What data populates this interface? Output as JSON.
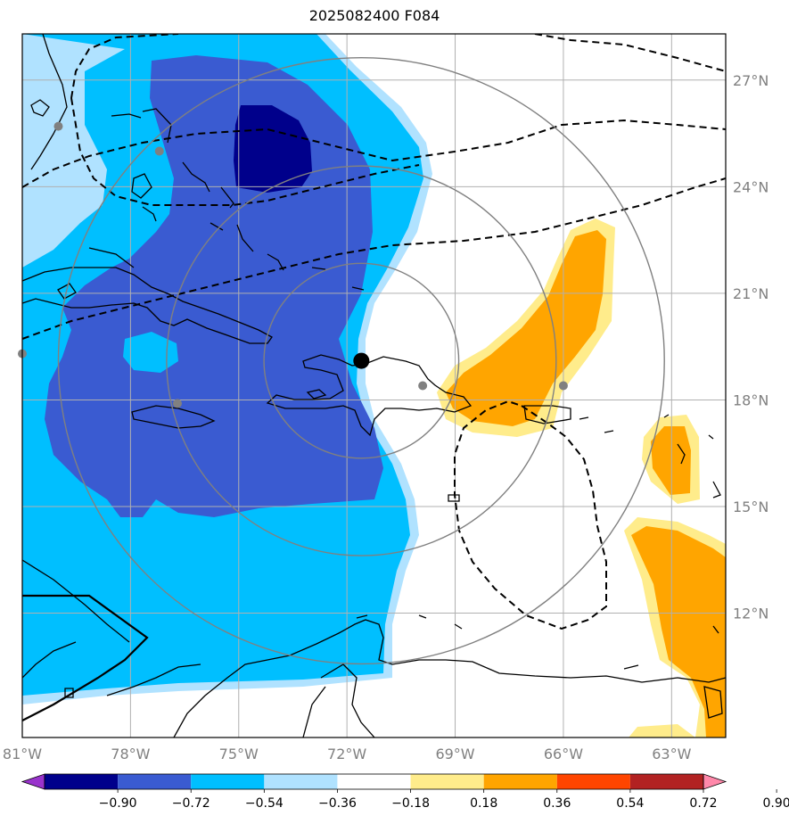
{
  "title": "2025082400 F084",
  "map": {
    "lon_range": [
      -81.0,
      -61.5
    ],
    "lat_range": [
      8.5,
      28.3
    ],
    "lon_ticks": [
      {
        "value": -81,
        "label": "81°W"
      },
      {
        "value": -78,
        "label": "78°W"
      },
      {
        "value": -75,
        "label": "75°W"
      },
      {
        "value": -72,
        "label": "72°W"
      },
      {
        "value": -69,
        "label": "69°W"
      },
      {
        "value": -66,
        "label": "66°W"
      },
      {
        "value": -63,
        "label": "63°W"
      }
    ],
    "lat_ticks": [
      {
        "value": 27,
        "label": "27°N"
      },
      {
        "value": 24,
        "label": "24°N"
      },
      {
        "value": 21,
        "label": "21°N"
      },
      {
        "value": 18,
        "label": "18°N"
      },
      {
        "value": 15,
        "label": "15°N"
      },
      {
        "value": 12,
        "label": "12°N"
      }
    ],
    "grid": true,
    "storm_center": {
      "lon": -71.6,
      "lat": 19.1
    },
    "range_rings_deg": [
      2.7,
      5.4,
      8.4
    ],
    "track_points": [
      {
        "lon": -80.0,
        "lat": 25.7
      },
      {
        "lon": -77.2,
        "lat": 25.0
      },
      {
        "lon": -81.0,
        "lat": 19.3
      },
      {
        "lon": -76.7,
        "lat": 17.9
      },
      {
        "lon": -69.9,
        "lat": 18.4
      },
      {
        "lon": -66.0,
        "lat": 18.4
      }
    ],
    "colors": {
      "grid": "#b0b0b0",
      "tick_label": "#808080",
      "ring": "#808080",
      "track_point": "#808080",
      "center": "#000000",
      "coast": "#000000"
    }
  },
  "colorbar": {
    "levels": [
      "−0.90",
      "−0.72",
      "−0.54",
      "−0.36",
      "−0.18",
      "0.18",
      "0.36",
      "0.54",
      "0.72",
      "0.90"
    ],
    "colors": [
      "#9933cc",
      "#00008b",
      "#3a5bd1",
      "#00bfff",
      "#b0e2ff",
      "#ffffff",
      "#ffec8b",
      "#ffa500",
      "#ff4500",
      "#b22222",
      "#ff88aa"
    ]
  }
}
